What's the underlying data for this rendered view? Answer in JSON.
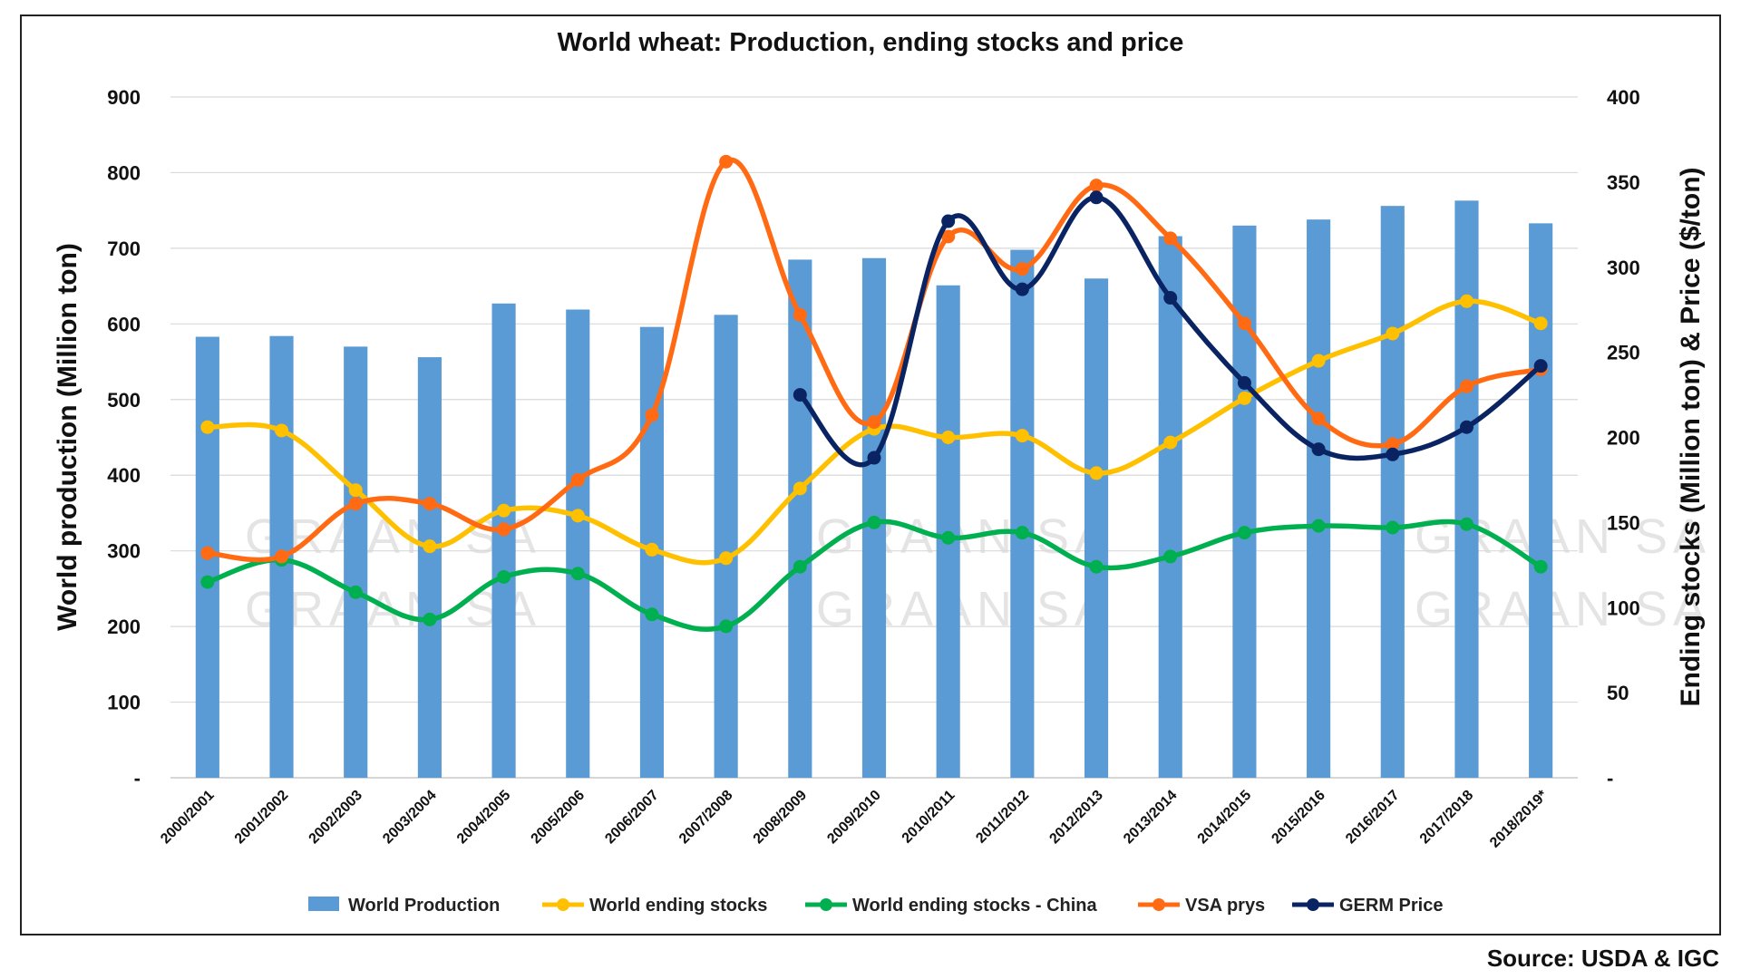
{
  "chart_data": {
    "type": "bar+line",
    "title": "World wheat: Production, ending stocks and price",
    "ylabel_left": "World production (Million ton)",
    "ylabel_right": "Ending stocks (Million ton) & Price ($/ton)",
    "ylim_left": [
      0,
      900
    ],
    "ylim_right": [
      0,
      400
    ],
    "yticks_left": [
      "-",
      "100",
      "200",
      "300",
      "400",
      "500",
      "600",
      "700",
      "800",
      "900"
    ],
    "yticks_right": [
      "-",
      "50",
      "100",
      "150",
      "200",
      "250",
      "300",
      "350",
      "400"
    ],
    "categories": [
      "2000/2001",
      "2001/2002",
      "2002/2003",
      "2003/2004",
      "2004/2005",
      "2005/2006",
      "2006/2007",
      "2007/2008",
      "2008/2009",
      "2009/2010",
      "2010/2011",
      "2011/2012",
      "2012/2013",
      "2013/2014",
      "2014/2015",
      "2015/2016",
      "2016/2017",
      "2017/2018",
      "2018/2019*"
    ],
    "grid": true,
    "legend_position": "bottom",
    "series": [
      {
        "name": "World Production",
        "type": "bar",
        "axis": "left",
        "color": "#5b9bd5",
        "values": [
          583,
          584,
          570,
          556,
          627,
          619,
          596,
          612,
          685,
          687,
          651,
          698,
          660,
          716,
          730,
          738,
          756,
          763,
          733
        ]
      },
      {
        "name": "World ending stocks",
        "type": "line",
        "axis": "right",
        "color": "#ffc000",
        "values": [
          206,
          204,
          169,
          136,
          157,
          154,
          134,
          129,
          170,
          205,
          200,
          201,
          179,
          197,
          223,
          245,
          261,
          280,
          267
        ]
      },
      {
        "name": "World ending stocks - China",
        "type": "line",
        "axis": "right",
        "color": "#00b050",
        "values": [
          115,
          128,
          109,
          93,
          118,
          120,
          96,
          89,
          124,
          150,
          141,
          144,
          124,
          130,
          144,
          148,
          147,
          149,
          124
        ]
      },
      {
        "name": "VSA prys",
        "type": "line",
        "axis": "right",
        "color": "#ff6a13",
        "values": [
          132,
          130,
          161,
          161,
          146,
          175,
          213,
          362,
          272,
          209,
          318,
          299,
          348,
          317,
          267,
          211,
          196,
          230,
          240
        ]
      },
      {
        "name": "GERM Price",
        "type": "line",
        "axis": "right",
        "color": "#0a2463",
        "values": [
          null,
          null,
          null,
          null,
          null,
          null,
          null,
          null,
          225,
          188,
          327,
          287,
          341,
          282,
          232,
          193,
          190,
          206,
          242
        ]
      }
    ]
  },
  "source_text": "Source: USDA & IGC",
  "watermark_text": "GRAAN SA"
}
